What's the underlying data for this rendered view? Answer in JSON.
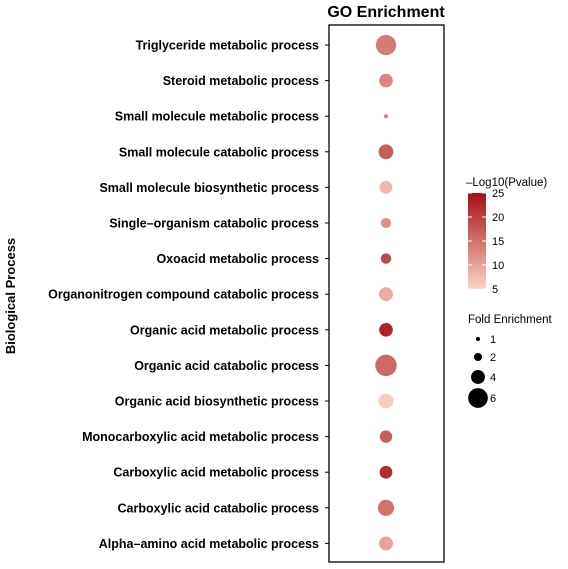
{
  "chart_data": {
    "type": "scatter",
    "title": "GO Enrichment",
    "ylabel": "Biological Process",
    "x": "GO Enrichment",
    "categories": [
      "Triglyceride metabolic process",
      "Steroid metabolic process",
      "Small molecule metabolic process",
      "Small molecule catabolic process",
      "Small molecule biosynthetic process",
      "Single–organism catabolic process",
      "Oxoacid metabolic process",
      "Organonitrogen compound catabolic process",
      "Organic acid metabolic process",
      "Organic acid catabolic process",
      "Organic acid biosynthetic process",
      "Monocarboxylic acid metabolic process",
      "Carboxylic acid metabolic process",
      "Carboxylic acid catabolic process",
      "Alpha–amino acid metabolic process"
    ],
    "series": [
      {
        "name": "–Log10(Pvalue)",
        "values": [
          14,
          13,
          14,
          17,
          8,
          12,
          19,
          9,
          23,
          16,
          6,
          17,
          22,
          15,
          10
        ]
      },
      {
        "name": "Fold Enrichment",
        "values": [
          6.2,
          3.9,
          1.0,
          4.3,
          3.6,
          2.7,
          2.8,
          4.0,
          3.9,
          6.6,
          4.3,
          3.5,
          3.6,
          4.8,
          4.0
        ]
      }
    ],
    "color_scale": {
      "title": "–Log10(Pvalue)",
      "ticks": [
        25,
        20,
        15,
        10,
        5
      ],
      "range": [
        5,
        25
      ],
      "low_color": "#fbd5c7",
      "high_color": "#a50f15"
    },
    "size_scale": {
      "title": "Fold Enrichment",
      "ticks": [
        1,
        2,
        4,
        6
      ],
      "range": [
        1,
        6
      ]
    },
    "grid": false,
    "legend_position": "right"
  }
}
